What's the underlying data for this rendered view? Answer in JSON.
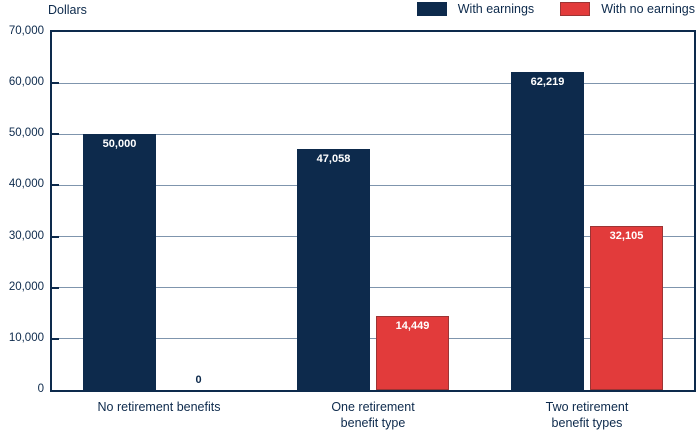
{
  "chart_data": {
    "type": "bar",
    "title": "Dollars",
    "categories": [
      "No retirement benefits",
      "One retirement\nbenefit type",
      "Two retirement\nbenefit types"
    ],
    "series": [
      {
        "name": "With earnings",
        "color": "#0d2a4c",
        "border_color": "#0d2a4c",
        "values": [
          50000,
          47058,
          62219
        ],
        "labels": [
          "50,000",
          "47,058",
          "62,219"
        ]
      },
      {
        "name": "With no earnings",
        "color": "#e23b3b",
        "border_color": "#9c3434",
        "values": [
          0,
          14449,
          32105
        ],
        "labels": [
          "0",
          "14,449",
          "32,105"
        ]
      }
    ],
    "ylabel": "Dollars",
    "xlabel": "",
    "ylim": [
      0,
      70000
    ],
    "ytick_step": 10000,
    "ytick_values": [
      0,
      10000,
      20000,
      30000,
      40000,
      50000,
      60000,
      70000
    ],
    "ytick_labels": [
      "0",
      "10,000",
      "20,000",
      "30,000",
      "40,000",
      "50,000",
      "60,000",
      "70,000"
    ],
    "grid": true,
    "legend_position": "top-right"
  },
  "colors": {
    "navy": "#0d2a4c",
    "red": "#e23b3b",
    "red_border": "#9c3434",
    "gridline": "#7f95ad",
    "background": "#ffffff",
    "value_label": "#ffffff"
  }
}
